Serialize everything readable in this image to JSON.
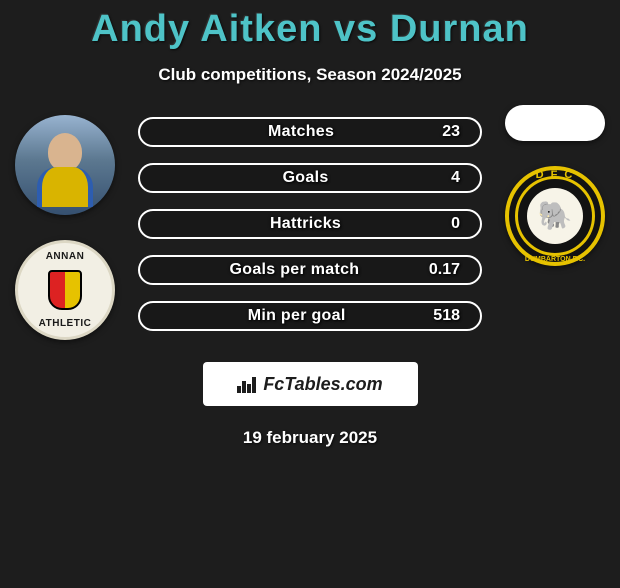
{
  "title": "Andy Aitken vs Durnan",
  "subtitle": "Club competitions, Season 2024/2025",
  "date": "19 february 2025",
  "brand": "FcTables.com",
  "colors": {
    "background": "#1d1d1d",
    "accent": "#4ec3c7",
    "pill_border": "#ffffff",
    "text": "#ffffff"
  },
  "left_player": {
    "name": "Andy Aitken",
    "club": "Annan Athletic",
    "club_top": "ANNAN",
    "club_bottom": "ATHLETIC"
  },
  "right_player": {
    "name": "Durnan",
    "club": "Dumbarton FC",
    "club_top": "D F C",
    "club_bottom": "DUMBARTON F.C."
  },
  "stats": [
    {
      "label": "Matches",
      "value": "23"
    },
    {
      "label": "Goals",
      "value": "4"
    },
    {
      "label": "Hattricks",
      "value": "0"
    },
    {
      "label": "Goals per match",
      "value": "0.17"
    },
    {
      "label": "Min per goal",
      "value": "518"
    }
  ],
  "styling": {
    "title_fontsize": 38,
    "title_color": "#4ec3c7",
    "subtitle_fontsize": 17,
    "pill_height": 30,
    "pill_border_radius": 16,
    "pill_border_width": 2,
    "stat_fontsize": 16,
    "avatar_diameter": 100,
    "logo_diameter": 100,
    "brand_box_bg": "#ffffff",
    "brand_box_width": 215,
    "brand_box_height": 44
  }
}
